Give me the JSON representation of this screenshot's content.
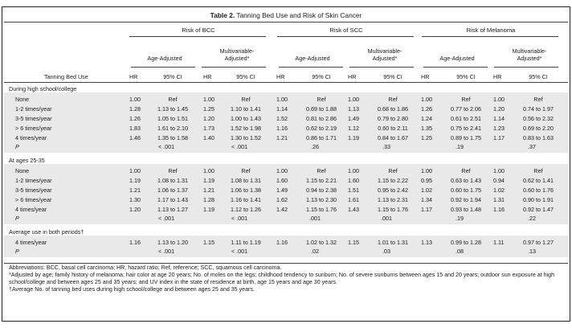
{
  "table_title": {
    "label": "Table 2.",
    "text": "Tanning Bed Use and Risk of Skin Cancer"
  },
  "groups": [
    {
      "label": "Risk of BCC",
      "age": "Age-Adjusted",
      "multi1": "Multivariable-",
      "multi2": "Adjusted*"
    },
    {
      "label": "Risk of SCC",
      "age": "Age-Adjusted",
      "multi1": "Multivariable-",
      "multi2": "Adjusted*"
    },
    {
      "label": "Risk of Melanoma",
      "age": "Age-Adjusted",
      "multi1": "Multivariable-",
      "multi2": "Adjusted*"
    }
  ],
  "col_headers": {
    "row_label": "Tanning Bed Use",
    "hr": "HR",
    "ci": "95% CI"
  },
  "sections": [
    {
      "title": "During high school/college",
      "rows": [
        {
          "label": "None",
          "cells": [
            "1.00",
            "Ref",
            "1.00",
            "Ref",
            "1.00",
            "Ref",
            "1.00",
            "Ref",
            "1.00",
            "Ref",
            "1.00",
            "Ref"
          ]
        },
        {
          "label": "1-2 times/year",
          "cells": [
            "1.28",
            "1.13 to 1.45",
            "1.25",
            "1.10 to 1.41",
            "1.14",
            "0.69 to 1.88",
            "1.13",
            "0.68 to 1.86",
            "1.26",
            "0.77 to 2.06",
            "1.20",
            "0.74 to 1.97"
          ]
        },
        {
          "label": "3-5 times/year",
          "cells": [
            "1.26",
            "1.05 to 1.51",
            "1.20",
            "1.00 to 1.43",
            "1.52",
            "0.81 to 2.86",
            "1.49",
            "0.79 to 2.80",
            "1.24",
            "0.61 to 2.51",
            "1.14",
            "0.56 to 2.32"
          ]
        },
        {
          "label": "> 6 times/year",
          "cells": [
            "1.83",
            "1.61 to 2.10",
            "1.73",
            "1.52 to 1.98",
            "1.16",
            "0.62 to 2.19",
            "1.12",
            "0.60 to 2.11",
            "1.35",
            "0.75 to 2.41",
            "1.23",
            "0.69 to 2.20"
          ]
        },
        {
          "label": "4 times/year",
          "cells": [
            "1.46",
            "1.35 to 1.58",
            "1.40",
            "1.30 to 1.52",
            "1.21",
            "0.86 to 1.71",
            "1.19",
            "0.84 to 1.67",
            "1.25",
            "0.89 to 1.75",
            "1.17",
            "0.83 to 1.63"
          ]
        }
      ],
      "p_label": "P",
      "p_values": [
        "< .001",
        "< .001",
        ".26",
        ".33",
        ".19",
        ".37"
      ]
    },
    {
      "title": "At ages 25-35",
      "rows": [
        {
          "label": "None",
          "cells": [
            "1.00",
            "Ref",
            "1.00",
            "Ref",
            "1.00",
            "Ref",
            "1.00",
            "Ref",
            "1.00",
            "Ref",
            "1.00",
            "Ref"
          ]
        },
        {
          "label": "1-2 times/year",
          "cells": [
            "1.19",
            "1.08 to 1.31",
            "1.19",
            "1.08 to 1.31",
            "1.60",
            "1.15 to 2.21",
            "1.60",
            "1.15 to 2.22",
            "0.95",
            "0.63 to 1.43",
            "0.94",
            "0.62 to 1.41"
          ]
        },
        {
          "label": "3-5 times/year",
          "cells": [
            "1.21",
            "1.06 to 1.37",
            "1.21",
            "1.06 to 1.38",
            "1.49",
            "0.94 to 2.38",
            "1.51",
            "0.95 to 2.42",
            "1.02",
            "0.60 to 1.75",
            "1.02",
            "0.60 to 1.76"
          ]
        },
        {
          "label": "> 6 times/year",
          "cells": [
            "1.30",
            "1.17 to 1.43",
            "1.28",
            "1.16 to 1.41",
            "1.62",
            "1.13 to 2.30",
            "1.61",
            "1.13 to 2.31",
            "1.34",
            "0.92 to 1.94",
            "1.31",
            "0.90 to 1.91"
          ]
        },
        {
          "label": "4 times/year",
          "cells": [
            "1.20",
            "1.13 to 1.27",
            "1.19",
            "1.12 to 1.26",
            "1.42",
            "1.15 to 1.76",
            "1.43",
            "1.15 to 1.76",
            "1.17",
            "0.93 to 1.48",
            "1.16",
            "0.92 to 1.47"
          ]
        }
      ],
      "p_label": "P",
      "p_values": [
        "< .001",
        "< .001",
        ".001",
        ".001",
        ".19",
        ".22"
      ]
    },
    {
      "title": "Average use in both periods†",
      "rows": [
        {
          "label": "4 times/year",
          "cells": [
            "1.16",
            "1.13 to 1.20",
            "1.15",
            "1.11 to 1.19",
            "1.16",
            "1.02 to 1.32",
            "1.15",
            "1.01 to 1.31",
            "1.13",
            "0.99 to 1.28",
            "1.11",
            "0.97 to 1.27"
          ]
        }
      ],
      "p_label": "P",
      "p_values": [
        "< .001",
        "< .001",
        ".02",
        ".03",
        ".08",
        ".13"
      ]
    }
  ],
  "footnotes": {
    "abbr": "Abbreviations: BCC, basal cell carcinoma; HR, hazard ratio; Ref, reference; SCC, squamous cell carcinoma.",
    "star": "*Adjusted by age; family history of melanoma; hair color at age 20 years; No. of moles on the legs; childhood tendency to sunburn; No. of severe sunburns between ages 15 and 20 years; outdoor sun exposure at high school/college and between ages 25 and 35 years; and UV index in the state of residence at birth, age 15 years and age 30 years.",
    "dagger": "†Average No. of tanning bed uses during high school/college and between ages 25 and 35 years."
  }
}
